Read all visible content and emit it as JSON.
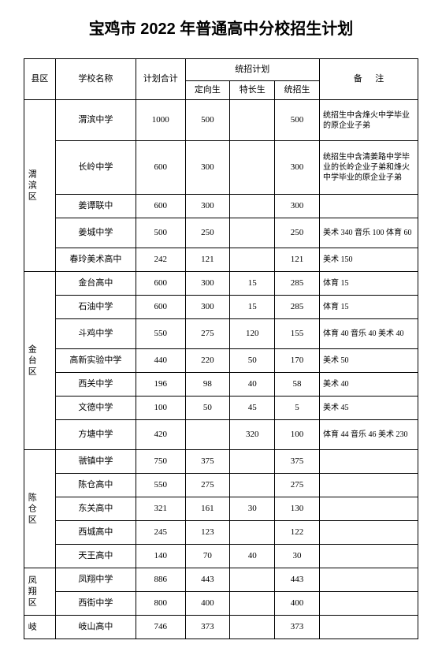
{
  "title": "宝鸡市 2022 年普通高中分校招生计划",
  "headers": {
    "district": "县区",
    "school": "学校名称",
    "planTotal": "计划合计",
    "tongzhaoPlan": "统招计划",
    "dingxiang": "定向生",
    "techang": "特长生",
    "tongzhao": "统招生",
    "remark": "备",
    "remark2": "注"
  },
  "districts": [
    {
      "name": "渭滨区",
      "rows": [
        {
          "school": "渭滨中学",
          "total": "1000",
          "dx": "500",
          "tc": "",
          "tz": "500",
          "remark": "统招生中含烽火中学毕业的原企业子弟",
          "tall": "tall"
        },
        {
          "school": "长岭中学",
          "total": "600",
          "dx": "300",
          "tc": "",
          "tz": "300",
          "remark": "统招生中含清姜路中学毕业的长岭企业子弟和烽火中学毕业的原企业子弟",
          "tall": "taller"
        },
        {
          "school": "姜谭联中",
          "total": "600",
          "dx": "300",
          "tc": "",
          "tz": "300",
          "remark": ""
        },
        {
          "school": "姜城中学",
          "total": "500",
          "dx": "250",
          "tc": "",
          "tz": "250",
          "remark": "美术 340 音乐 100 体育 60",
          "tall": "tall2"
        },
        {
          "school": "春玲美术高中",
          "total": "242",
          "dx": "121",
          "tc": "",
          "tz": "121",
          "remark": "美术 150"
        }
      ]
    },
    {
      "name": "金台区",
      "rows": [
        {
          "school": "金台高中",
          "total": "600",
          "dx": "300",
          "tc": "15",
          "tz": "285",
          "remark": "体育 15"
        },
        {
          "school": "石油中学",
          "total": "600",
          "dx": "300",
          "tc": "15",
          "tz": "285",
          "remark": "体育 15"
        },
        {
          "school": "斗鸡中学",
          "total": "550",
          "dx": "275",
          "tc": "120",
          "tz": "155",
          "remark": "体育 40 音乐 40 美术 40",
          "tall": "tall2"
        },
        {
          "school": "高新实验中学",
          "total": "440",
          "dx": "220",
          "tc": "50",
          "tz": "170",
          "remark": "美术 50"
        },
        {
          "school": "西关中学",
          "total": "196",
          "dx": "98",
          "tc": "40",
          "tz": "58",
          "remark": "美术 40"
        },
        {
          "school": "文德中学",
          "total": "100",
          "dx": "50",
          "tc": "45",
          "tz": "5",
          "remark": "美术 45"
        },
        {
          "school": "方塘中学",
          "total": "420",
          "dx": "",
          "tc": "320",
          "tz": "100",
          "remark": "体育 44 音乐 46 美术 230",
          "tall": "tall2"
        }
      ]
    },
    {
      "name": "陈仓区",
      "rows": [
        {
          "school": "虢镇中学",
          "total": "750",
          "dx": "375",
          "tc": "",
          "tz": "375",
          "remark": ""
        },
        {
          "school": "陈仓高中",
          "total": "550",
          "dx": "275",
          "tc": "",
          "tz": "275",
          "remark": ""
        },
        {
          "school": "东关高中",
          "total": "321",
          "dx": "161",
          "tc": "30",
          "tz": "130",
          "remark": ""
        },
        {
          "school": "西城高中",
          "total": "245",
          "dx": "123",
          "tc": "",
          "tz": "122",
          "remark": ""
        },
        {
          "school": "天王高中",
          "total": "140",
          "dx": "70",
          "tc": "40",
          "tz": "30",
          "remark": ""
        }
      ]
    },
    {
      "name": "凤翔区",
      "rows": [
        {
          "school": "凤翔中学",
          "total": "886",
          "dx": "443",
          "tc": "",
          "tz": "443",
          "remark": ""
        },
        {
          "school": "西街中学",
          "total": "800",
          "dx": "400",
          "tc": "",
          "tz": "400",
          "remark": ""
        }
      ]
    },
    {
      "name": "岐",
      "rows": [
        {
          "school": "岐山高中",
          "total": "746",
          "dx": "373",
          "tc": "",
          "tz": "373",
          "remark": ""
        }
      ]
    }
  ]
}
